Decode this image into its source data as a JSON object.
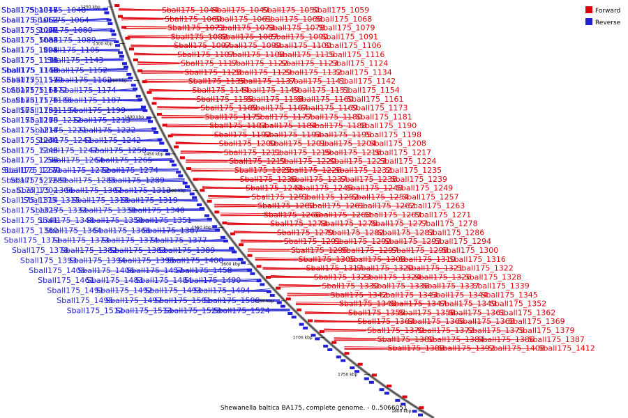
{
  "caption": "Shewanella baltica BA175, complete genome. - 0..5066051",
  "legend": [
    {
      "label": "Forward",
      "color": "#e0000a"
    },
    {
      "label": "Reverse",
      "color": "#1f1fd6"
    }
  ],
  "colors": {
    "forward": "#e0000a",
    "reverse": "#1f1fd6",
    "backbone": "#555555"
  },
  "ticks": [
    "1250 kbp",
    "1300 kbp",
    "1350 kbp",
    "1400 kbp",
    "1450 kbp",
    "1500 kbp",
    "1550 kbp",
    "1600 kbp",
    "1650 kbp",
    "1700 kbp",
    "1750 kbp",
    "1800 kbp"
  ],
  "reverse_labels": [
    "Sball175_1045",
    "Sball175_1046",
    "Sball175_1047",
    "Sball175_1048",
    "Sball175_1053",
    "Sball175_1062",
    "Sball175_1063",
    "Sball175_1064",
    "Sball175_1065",
    "Sball175_1067",
    "Sball175_1076",
    "Sball175_1080",
    "Sball175_1083",
    "Sball175_1084",
    "Sball175_1088",
    "Sball175_1089",
    "Sball175_1096",
    "Sball175_1098",
    "Sball175_1101",
    "Sball175_1105",
    "Sball175_1110",
    "Sball175_1118",
    "Sball175_1131",
    "Sball175_1143",
    "Sball175_1146",
    "Sball175_1148",
    "Sball175_1150",
    "Sball175_1152",
    "Sball175_1153",
    "Sball175_1157",
    "Sball175_1159",
    "Sball175_1162",
    "Sball175_1164",
    "Sball175_1168",
    "Sball175_1172",
    "Sball175_1174",
    "Sball175_1176",
    "Sball175_1179",
    "Sball175_1186",
    "Sball175_1187",
    "Sball175_1189",
    "Sball175_1191",
    "Sball175_1194",
    "Sball175_1199",
    "Sball175_1209",
    "Sball175_1210",
    "Sball175_1212",
    "Sball175_1213",
    "Sball175_1214",
    "Sball175_1218",
    "Sball175_1221",
    "Sball175_1222",
    "Sball175_1234",
    "Sball175_1240",
    "Sball175_1241",
    "Sball175_1242",
    "Sball175_1243",
    "Sball175_1246",
    "Sball175_1247",
    "Sball175_1250",
    "Sball175_1258",
    "Sball175_1259",
    "Sball175_1264",
    "Sball175_1265",
    "Sball175_1267",
    "Sball175_1270",
    "Sball175_1272",
    "Sball175_1274",
    "Sball175_1276",
    "Sball175_1280",
    "Sball175_1285",
    "Sball175_1289",
    "Sball175_1302",
    "Sball175_1306",
    "Sball175_1307",
    "Sball175_1313",
    "Sball175_1314",
    "Sball175_1315",
    "Sball175_1318",
    "Sball175_1319",
    "Sball175_1325",
    "Sball175_1333",
    "Sball175_1338",
    "Sball175_1340",
    "Sball175_1341",
    "Sball175_1348",
    "Sball175_1350",
    "Sball175_1351",
    "Sball175_1360",
    "Sball175_1364",
    "Sball175_1366",
    "Sball175_1367",
    "Sball175_1371",
    "Sball175_1373",
    "Sball175_1374",
    "Sball175_1377",
    "Sball175_1378",
    "Sball175_1382",
    "Sball175_1383",
    "Sball175_1389",
    "Sball175_1393",
    "Sball175_1394",
    "Sball175_1395",
    "Sball175_1400",
    "Sball175_1405",
    "Sball175_1406",
    "Sball175_1457",
    "Sball175_1458",
    "Sball175_1461",
    "Sball175_1483",
    "Sball175_1484",
    "Sball175_1490",
    "Sball175_1491",
    "Sball175_1492",
    "Sball175_1493",
    "Sball175_1494",
    "Sball175_1495",
    "Sball175_1497",
    "Sball175_1501",
    "Sball175_1508",
    "Sball175_1512",
    "Sball175_1513",
    "Sball175_1523",
    "Sball175_1524"
  ],
  "forward_labels": [
    "Sball175_1044",
    "Sball175_1049",
    "Sball175_1050",
    "Sball175_1059",
    "Sball175_1060",
    "Sball175_1061",
    "Sball175_1066",
    "Sball175_1068",
    "Sball175_1071",
    "Sball175_1073",
    "Sball175_1078",
    "Sball175_1079",
    "Sball175_1082",
    "Sball175_1087",
    "Sball175_1090",
    "Sball175_1091",
    "Sball175_1097",
    "Sball175_1099",
    "Sball175_1100",
    "Sball175_1106",
    "Sball175_1107",
    "Sball175_1108",
    "Sball175_1115",
    "Sball175_1116",
    "Sball175_1117",
    "Sball175_1122",
    "Sball175_1123",
    "Sball175_1124",
    "Sball175_1128",
    "Sball175_1129",
    "Sball175_1132",
    "Sball175_1134",
    "Sball175_1135",
    "Sball175_1137",
    "Sball175_1141",
    "Sball175_1142",
    "Sball175_1144",
    "Sball175_1149",
    "Sball175_1151",
    "Sball175_1154",
    "Sball175_1155",
    "Sball175_1158",
    "Sball175_1160",
    "Sball175_1161",
    "Sball175_1165",
    "Sball175_1167",
    "Sball175_1169",
    "Sball175_1173",
    "Sball175_1175",
    "Sball175_1177",
    "Sball175_1180",
    "Sball175_1181",
    "Sball175_1183",
    "Sball175_1184",
    "Sball175_1188",
    "Sball175_1190",
    "Sball175_1192",
    "Sball175_1193",
    "Sball175_1195",
    "Sball175_1198",
    "Sball175_1200",
    "Sball175_1201",
    "Sball175_1204",
    "Sball175_1208",
    "Sball175_1211",
    "Sball175_1215",
    "Sball175_1216",
    "Sball175_1217",
    "Sball175_1219",
    "Sball175_1220",
    "Sball175_1223",
    "Sball175_1224",
    "Sball175_1225",
    "Sball175_1226",
    "Sball175_1232",
    "Sball175_1235",
    "Sball175_1236",
    "Sball175_1237",
    "Sball175_1238",
    "Sball175_1239",
    "Sball175_1244",
    "Sball175_1245",
    "Sball175_1248",
    "Sball175_1249",
    "Sball175_1251",
    "Sball175_1252",
    "Sball175_1254",
    "Sball175_1257",
    "Sball175_1260",
    "Sball175_1261",
    "Sball175_1262",
    "Sball175_1263",
    "Sball175_1266",
    "Sball175_1268",
    "Sball175_1269",
    "Sball175_1271",
    "Sball175_1273",
    "Sball175_1275",
    "Sball175_1277",
    "Sball175_1278",
    "Sball175_1279",
    "Sball175_1282",
    "Sball175_1283",
    "Sball175_1286",
    "Sball175_1291",
    "Sball175_1292",
    "Sball175_1293",
    "Sball175_1294",
    "Sball175_1296",
    "Sball175_1297",
    "Sball175_1298",
    "Sball175_1300",
    "Sball175_1305",
    "Sball175_1308",
    "Sball175_1310",
    "Sball175_1316",
    "Sball175_1317",
    "Sball175_1320",
    "Sball175_1321",
    "Sball175_1322",
    "Sball175_1323",
    "Sball175_1324",
    "Sball175_1326",
    "Sball175_1328",
    "Sball175_1330",
    "Sball175_1336",
    "Sball175_1337",
    "Sball175_1339",
    "Sball175_1342",
    "Sball175_1343",
    "Sball175_1344",
    "Sball175_1345",
    "Sball175_1346",
    "Sball175_1347",
    "Sball175_1349",
    "Sball175_1352",
    "Sball175_1355",
    "Sball175_1358",
    "Sball175_1361",
    "Sball175_1362",
    "Sball175_1363",
    "Sball175_1365",
    "Sball175_1368",
    "Sball175_1369",
    "Sball175_1370",
    "Sball175_1372",
    "Sball175_1375",
    "Sball175_1379",
    "Sball175_1380",
    "Sball175_1384",
    "Sball175_1386",
    "Sball175_1387",
    "Sball175_1388",
    "Sball175_1392",
    "Sball175_1408",
    "Sball175_1412"
  ]
}
